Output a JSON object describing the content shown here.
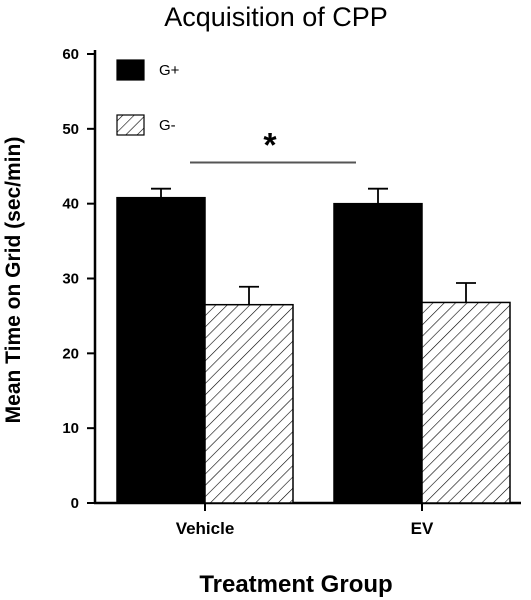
{
  "chart_data": {
    "type": "bar",
    "title": "Acquisition of CPP",
    "xlabel": "Treatment Group",
    "ylabel": "Mean Time on Grid (sec/min)",
    "categories": [
      "Vehicle",
      "EV"
    ],
    "ylim": [
      0,
      60
    ],
    "yticks": [
      0,
      10,
      20,
      30,
      40,
      50,
      60
    ],
    "series": [
      {
        "name": "G+",
        "values": [
          40.8,
          40.0
        ],
        "errors": [
          1.2,
          2.0
        ],
        "fill": "solid",
        "color": "#000000"
      },
      {
        "name": "G-",
        "values": [
          26.5,
          26.8
        ],
        "errors": [
          2.4,
          2.6
        ],
        "fill": "hatched",
        "color": "#ffffff"
      }
    ],
    "annotation": {
      "text": "*",
      "bracket_level": 45.5
    },
    "legend_position": "top-left",
    "grid": false
  }
}
